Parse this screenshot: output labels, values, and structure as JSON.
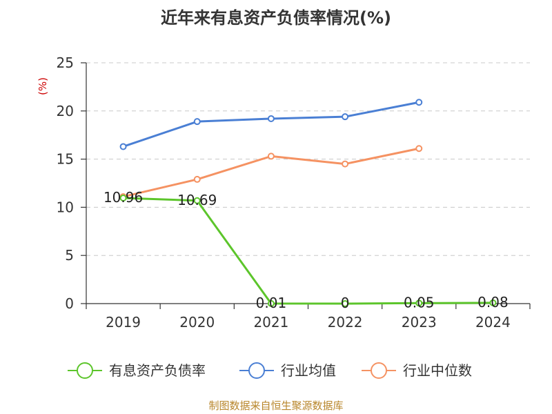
{
  "chart_data": {
    "type": "line",
    "title": "近年来有息资产负债率情况(%)",
    "ylabel": "(%)",
    "xlabel": "",
    "categories": [
      "2019",
      "2020",
      "2021",
      "2022",
      "2023",
      "2024"
    ],
    "ylim": [
      0,
      25
    ],
    "yticks": [
      "0",
      "5",
      "10",
      "15",
      "20",
      "25"
    ],
    "grid": true,
    "legend_position": "bottom",
    "series": [
      {
        "name": "有息资产负债率",
        "color": "#5cc52b",
        "values": [
          10.96,
          10.69,
          0.01,
          0,
          0.05,
          0.08
        ],
        "labels": [
          "10.96",
          "10.69",
          "0.01",
          "0",
          "0.05",
          "0.08"
        ]
      },
      {
        "name": "行业均值",
        "color": "#4a7fd4",
        "values": [
          16.3,
          18.9,
          19.2,
          19.4,
          20.9,
          null
        ]
      },
      {
        "name": "行业中位数",
        "color": "#f59262",
        "values": [
          11.1,
          12.9,
          15.3,
          14.5,
          16.1,
          null
        ]
      }
    ]
  },
  "source": "制图数据来自恒生聚源数据库"
}
